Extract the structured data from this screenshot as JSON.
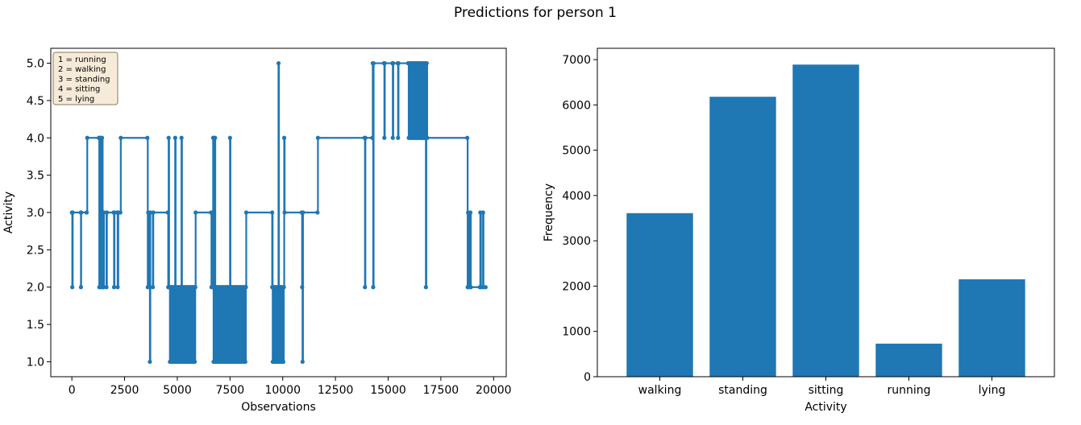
{
  "figure": {
    "suptitle": "Predictions for person 1"
  },
  "colors": {
    "series": "#1f77b4",
    "legend_bg": "#f6ebd8",
    "legend_border": "#8b7a5e",
    "axis": "#000000"
  },
  "chart_data": [
    {
      "type": "line",
      "title": "",
      "xlabel": "Observations",
      "ylabel": "Activity",
      "xlim": [
        -1000,
        20600
      ],
      "ylim": [
        0.8,
        5.2
      ],
      "xticks": [
        0,
        2500,
        5000,
        7500,
        10000,
        12500,
        15000,
        17500,
        20000
      ],
      "xtick_labels": [
        "0",
        "2500",
        "5000",
        "7500",
        "10000",
        "12500",
        "15000",
        "17500",
        "20000"
      ],
      "yticks": [
        1.0,
        1.5,
        2.0,
        2.5,
        3.0,
        3.5,
        4.0,
        4.5,
        5.0
      ],
      "ytick_labels": [
        "1.0",
        "1.5",
        "2.0",
        "2.5",
        "3.0",
        "3.5",
        "4.0",
        "4.5",
        "5.0"
      ],
      "marker": "circle",
      "legend": {
        "placement": "top-left",
        "entries": [
          "1 = running",
          "2 = walking",
          "3 = standing",
          "4 = sitting",
          "5 = lying"
        ]
      },
      "series": [
        {
          "steps": [
            [
              0,
              3
            ],
            [
              20,
              2
            ],
            [
              40,
              3
            ],
            [
              420,
              3
            ],
            [
              430,
              2
            ],
            [
              440,
              3
            ],
            [
              700,
              3
            ],
            [
              730,
              4
            ],
            [
              1280,
              4
            ],
            [
              1300,
              2
            ],
            [
              1320,
              4
            ],
            [
              1360,
              4
            ],
            [
              1380,
              2
            ],
            [
              1400,
              3
            ],
            [
              1430,
              4
            ],
            [
              1460,
              2
            ],
            [
              1490,
              3
            ],
            [
              1500,
              2
            ],
            [
              1520,
              3
            ],
            [
              1640,
              2
            ],
            [
              1660,
              3
            ],
            [
              1980,
              3
            ],
            [
              2000,
              2
            ],
            [
              2020,
              3
            ],
            [
              2150,
              3
            ],
            [
              2170,
              2
            ],
            [
              2200,
              3
            ],
            [
              2300,
              3
            ],
            [
              2320,
              4
            ],
            [
              3580,
              4
            ],
            [
              3600,
              2
            ],
            [
              3620,
              3
            ],
            [
              3700,
              1
            ],
            [
              3720,
              3
            ],
            [
              3840,
              2
            ],
            [
              3860,
              3
            ],
            [
              4550,
              3
            ],
            [
              4570,
              2
            ],
            [
              4590,
              4
            ],
            [
              4610,
              2
            ],
            [
              4650,
              1
            ],
            [
              4700,
              2
            ]
          ],
          "dense_bands": [
            {
              "x_start": 4650,
              "x_end": 5850,
              "low": 1,
              "high": 2
            },
            {
              "x_start": 6700,
              "x_end": 8250,
              "low": 1,
              "high": 2
            },
            {
              "x_start": 9500,
              "x_end": 10050,
              "low": 1,
              "high": 2
            },
            {
              "x_start": 15950,
              "x_end": 16750,
              "low": 4,
              "high": 5
            }
          ],
          "steps_after": [
            [
              4900,
              4
            ],
            [
              4920,
              2
            ],
            [
              5200,
              4
            ],
            [
              5220,
              2
            ],
            [
              5850,
              2
            ],
            [
              5870,
              3
            ],
            [
              6600,
              3
            ],
            [
              6620,
              2
            ],
            [
              6700,
              4
            ],
            [
              6720,
              1
            ],
            [
              6750,
              4
            ],
            [
              6770,
              2
            ],
            [
              6790,
              4
            ],
            [
              6810,
              2
            ],
            [
              7500,
              4
            ],
            [
              7520,
              2
            ],
            [
              8250,
              2
            ],
            [
              8270,
              3
            ],
            [
              9500,
              3
            ],
            [
              9520,
              2
            ],
            [
              9800,
              5
            ],
            [
              9820,
              2
            ],
            [
              10050,
              2
            ],
            [
              10070,
              4
            ],
            [
              10090,
              3
            ],
            [
              10900,
              3
            ],
            [
              10920,
              2
            ],
            [
              10940,
              1
            ],
            [
              10960,
              3
            ],
            [
              11650,
              3
            ],
            [
              11670,
              4
            ],
            [
              13880,
              4
            ],
            [
              13900,
              2
            ],
            [
              13920,
              4
            ],
            [
              14250,
              4
            ],
            [
              14270,
              5
            ],
            [
              14290,
              2
            ],
            [
              14310,
              5
            ],
            [
              14800,
              5
            ],
            [
              14820,
              4
            ],
            [
              14840,
              5
            ],
            [
              15200,
              5
            ],
            [
              15220,
              4
            ],
            [
              15240,
              5
            ],
            [
              15450,
              5
            ],
            [
              15470,
              4
            ],
            [
              15490,
              5
            ],
            [
              15950,
              5
            ],
            [
              16750,
              5
            ],
            [
              16770,
              4
            ],
            [
              16790,
              2
            ],
            [
              16810,
              4
            ],
            [
              16830,
              5
            ],
            [
              16850,
              4
            ],
            [
              18750,
              4
            ],
            [
              18770,
              2
            ],
            [
              18790,
              3
            ],
            [
              18820,
              2
            ],
            [
              18900,
              3
            ],
            [
              18920,
              2
            ],
            [
              19350,
              2
            ],
            [
              19370,
              3
            ],
            [
              19400,
              2
            ],
            [
              19500,
              3
            ],
            [
              19520,
              2
            ],
            [
              19620,
              2
            ]
          ]
        }
      ]
    },
    {
      "type": "bar",
      "title": "",
      "xlabel": "Activity",
      "ylabel": "Frequency",
      "categories": [
        "walking",
        "standing",
        "sitting",
        "running",
        "lying"
      ],
      "values": [
        3610,
        6180,
        6890,
        730,
        2150
      ],
      "ylim": [
        0,
        7250
      ],
      "yticks": [
        0,
        1000,
        2000,
        3000,
        4000,
        5000,
        6000,
        7000
      ],
      "ytick_labels": [
        "0",
        "1000",
        "2000",
        "3000",
        "4000",
        "5000",
        "6000",
        "7000"
      ]
    }
  ]
}
